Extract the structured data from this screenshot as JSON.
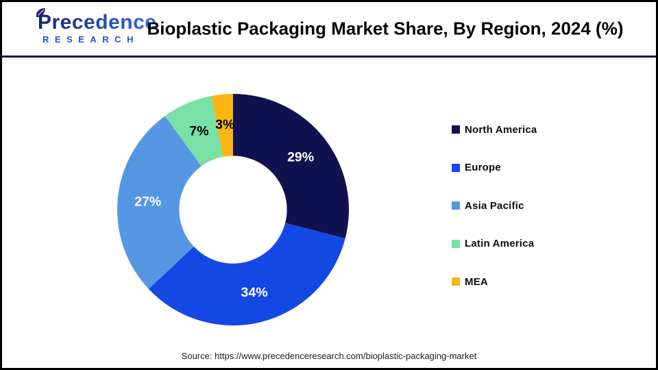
{
  "header": {
    "logo": {
      "name": "Precedence",
      "subtitle": "RESEARCH"
    },
    "title": "Bioplastic Packaging Market Share, By Region, 2024 (%)"
  },
  "chart_data": {
    "type": "pie",
    "subtype": "donut",
    "title": "Bioplastic Packaging Market Share, By Region, 2024 (%)",
    "unit": "%",
    "categories": [
      "North America",
      "Europe",
      "Asia Pacific",
      "Latin America",
      "MEA"
    ],
    "values": [
      29,
      34,
      27,
      7,
      3
    ],
    "value_labels": [
      "29%",
      "34%",
      "27%",
      "7%",
      "3%"
    ],
    "colors": [
      "#10124F",
      "#1448E4",
      "#5697E3",
      "#79E0A6",
      "#F9B613"
    ],
    "value_label_colors": [
      "#FFFFFF",
      "#FFFFFF",
      "#FFFFFF",
      "#000000",
      "#000000"
    ],
    "start_angle_deg": 0,
    "direction": "clockwise",
    "inner_radius_ratio": 0.465,
    "legend_position": "right",
    "background": "#FFFFFF"
  },
  "footer": {
    "source": "Source: https://www.precedenceresearch.com/bioplastic-packaging-market"
  }
}
